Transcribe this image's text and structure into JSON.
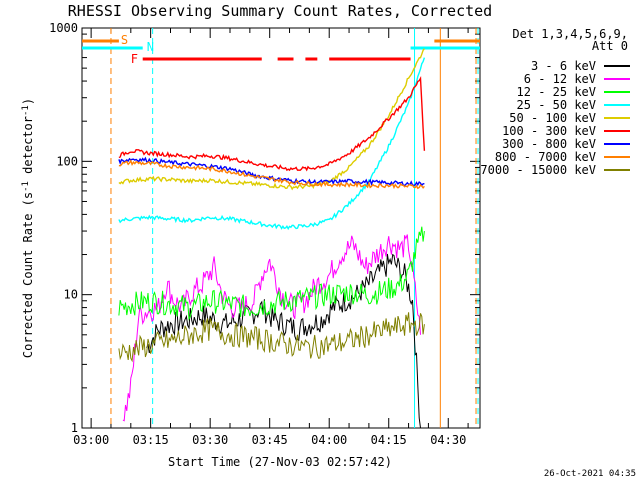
{
  "chart_data": {
    "type": "line",
    "title": "RHESSI Observing Summary Count Rates, Corrected",
    "xlabel": "Start Time (27-Nov-03 02:57:42)",
    "ylabel": "Corrected Count Rate (s⁻¹ detector⁻¹)",
    "ylabel_main": "Corrected Count Rate (s",
    "ylabel_sup1": "-1",
    "ylabel_mid": " detector",
    "ylabel_sup2": "-1",
    "ylabel_end": ")",
    "y_scale": "log",
    "ylim": [
      1,
      1000
    ],
    "xlim": [
      "02:57:42",
      "04:38:00"
    ],
    "x_ticks": [
      "03:00",
      "03:15",
      "03:30",
      "03:45",
      "04:00",
      "04:15",
      "04:30"
    ],
    "y_ticks": [
      "1",
      "10",
      "100",
      "1000"
    ],
    "timestamp": "26-Oct-2021 04:35",
    "legend": {
      "header1": "Det 1,3,4,5,6,9,",
      "header2": "Att 0",
      "placement": "right"
    },
    "flags": {
      "S": {
        "label": "S",
        "color": "#ff7f00",
        "spans": [
          [
            "02:57:42",
            "03:07:00"
          ],
          [
            "04:26:30",
            "04:38:00"
          ]
        ]
      },
      "N": {
        "label": "N",
        "color": "#00ffff",
        "spans": [
          [
            "02:57:42",
            "03:13:00"
          ],
          [
            "04:20:30",
            "04:38:00"
          ]
        ]
      },
      "F": {
        "label": "F",
        "color": "#ff0000",
        "spans": [
          [
            "03:13:00",
            "03:43:00"
          ],
          [
            "03:47:00",
            "03:51:00"
          ],
          [
            "03:54:00",
            "03:57:00"
          ],
          [
            "04:00:00",
            "04:20:30"
          ]
        ]
      }
    },
    "vlines": [
      {
        "time": "03:05:00",
        "color": "#ff7f00",
        "dashed": true
      },
      {
        "time": "03:15:30",
        "color": "#00ffff",
        "dashed": true
      },
      {
        "time": "04:21:30",
        "color": "#00ffff",
        "dashed": false
      },
      {
        "time": "04:28:00",
        "color": "#ff7f00",
        "dashed": false
      },
      {
        "time": "04:37:00",
        "color": "#ff7f00",
        "dashed": true
      },
      {
        "time": "04:37:30",
        "color": "#00ffff",
        "dashed": true
      }
    ],
    "series": [
      {
        "name": "3 - 6 keV",
        "color": "#000000",
        "x": [
          "03:14",
          "03:17",
          "03:20",
          "03:25",
          "03:28",
          "03:31",
          "03:34",
          "03:37",
          "03:40",
          "03:43",
          "03:46",
          "03:49",
          "03:52",
          "03:55",
          "03:58",
          "04:01",
          "04:04",
          "04:07",
          "04:10",
          "04:13",
          "04:16",
          "04:19",
          "04:21",
          "04:22",
          "04:23"
        ],
        "y": [
          4,
          5.5,
          6,
          6.5,
          7,
          6.5,
          6,
          6.5,
          7,
          8,
          6.5,
          6,
          5.5,
          6,
          6.5,
          8,
          9,
          10,
          12,
          15,
          18,
          14,
          9,
          3,
          1
        ]
      },
      {
        "name": "6 - 12 keV",
        "color": "#ff00ff",
        "x": [
          "03:08",
          "03:09",
          "03:10",
          "03:12",
          "03:14",
          "03:17",
          "03:19",
          "03:21",
          "03:23",
          "03:25",
          "03:28",
          "03:31",
          "03:33",
          "03:35",
          "03:38",
          "03:41",
          "03:43",
          "03:45",
          "03:48",
          "03:51",
          "03:54",
          "03:57",
          "04:00",
          "04:03",
          "04:06",
          "04:09",
          "04:12",
          "04:15",
          "04:18",
          "04:20",
          "04:22",
          "04:23"
        ],
        "y": [
          1.2,
          1.5,
          2,
          7,
          7.5,
          8,
          12,
          9,
          8,
          10,
          12,
          16,
          10,
          8,
          8,
          9,
          14,
          18,
          10,
          8,
          9,
          12,
          14,
          20,
          24,
          16,
          20,
          25,
          22,
          24,
          9,
          5
        ]
      },
      {
        "name": "12 - 25 keV",
        "color": "#00ff00",
        "x": [
          "03:07",
          "03:10",
          "03:15",
          "03:20",
          "03:25",
          "03:30",
          "03:35",
          "03:40",
          "03:45",
          "03:50",
          "03:55",
          "04:00",
          "04:05",
          "04:10",
          "04:15",
          "04:18",
          "04:20",
          "04:22",
          "04:24"
        ],
        "y": [
          8,
          8.5,
          9,
          8.5,
          8,
          9,
          8.5,
          8,
          8.5,
          9,
          9.5,
          10,
          10.5,
          10,
          11,
          12,
          14,
          22,
          30
        ]
      },
      {
        "name": "25 - 50 keV",
        "color": "#00ffff",
        "x": [
          "03:07",
          "03:10",
          "03:15",
          "03:20",
          "03:25",
          "03:30",
          "03:35",
          "03:40",
          "03:45",
          "03:50",
          "03:55",
          "04:00",
          "04:05",
          "04:10",
          "04:15",
          "04:20",
          "04:24"
        ],
        "y": [
          36,
          37,
          38,
          37,
          36,
          38,
          37,
          35,
          33,
          32,
          33,
          36,
          48,
          70,
          130,
          270,
          600
        ]
      },
      {
        "name": "50 - 100 keV",
        "color": "#ddcc00",
        "x": [
          "03:07",
          "03:10",
          "03:15",
          "03:20",
          "03:25",
          "03:30",
          "03:35",
          "03:40",
          "03:45",
          "03:50",
          "03:55",
          "04:00",
          "04:05",
          "04:10",
          "04:15",
          "04:20",
          "04:24"
        ],
        "y": [
          70,
          72,
          74,
          73,
          71,
          72,
          70,
          68,
          66,
          64,
          65,
          70,
          90,
          130,
          220,
          420,
          700
        ]
      },
      {
        "name": "100 - 300 keV",
        "color": "#ff0000",
        "x": [
          "03:07",
          "03:10",
          "03:15",
          "03:20",
          "03:25",
          "03:30",
          "03:35",
          "03:40",
          "03:45",
          "03:50",
          "03:55",
          "04:00",
          "04:05",
          "04:10",
          "04:15",
          "04:20",
          "04:23",
          "04:24"
        ],
        "y": [
          110,
          120,
          115,
          112,
          108,
          110,
          105,
          98,
          92,
          88,
          88,
          95,
          115,
          150,
          210,
          300,
          420,
          120
        ]
      },
      {
        "name": "300 - 800 keV",
        "color": "#0000ff",
        "x": [
          "03:07",
          "03:10",
          "03:15",
          "03:20",
          "03:25",
          "03:30",
          "03:35",
          "03:40",
          "03:45",
          "03:50",
          "03:55",
          "04:00",
          "04:05",
          "04:10",
          "04:15",
          "04:20",
          "04:24"
        ],
        "y": [
          100,
          104,
          102,
          98,
          95,
          92,
          88,
          80,
          75,
          72,
          70,
          70,
          71,
          70,
          69,
          68,
          68
        ]
      },
      {
        "name": "800 - 7000 keV",
        "color": "#ff7f00",
        "x": [
          "03:07",
          "03:10",
          "03:15",
          "03:20",
          "03:25",
          "03:30",
          "03:35",
          "03:40",
          "03:45",
          "03:50",
          "03:55",
          "04:00",
          "04:05",
          "04:10",
          "04:15",
          "04:20",
          "04:24"
        ],
        "y": [
          95,
          98,
          96,
          92,
          90,
          88,
          84,
          78,
          74,
          70,
          68,
          67,
          67,
          66,
          66,
          65,
          65
        ]
      },
      {
        "name": "7000 - 15000 keV",
        "color": "#808000",
        "x": [
          "03:07",
          "03:10",
          "03:15",
          "03:20",
          "03:25",
          "03:30",
          "03:35",
          "03:40",
          "03:45",
          "03:50",
          "03:55",
          "04:00",
          "04:05",
          "04:10",
          "04:15",
          "04:20",
          "04:24"
        ],
        "y": [
          3.6,
          3.8,
          4.2,
          4.5,
          5,
          5.5,
          5,
          4.8,
          4.5,
          4.2,
          4,
          4.2,
          4.5,
          5,
          5.5,
          6,
          6
        ]
      }
    ]
  }
}
